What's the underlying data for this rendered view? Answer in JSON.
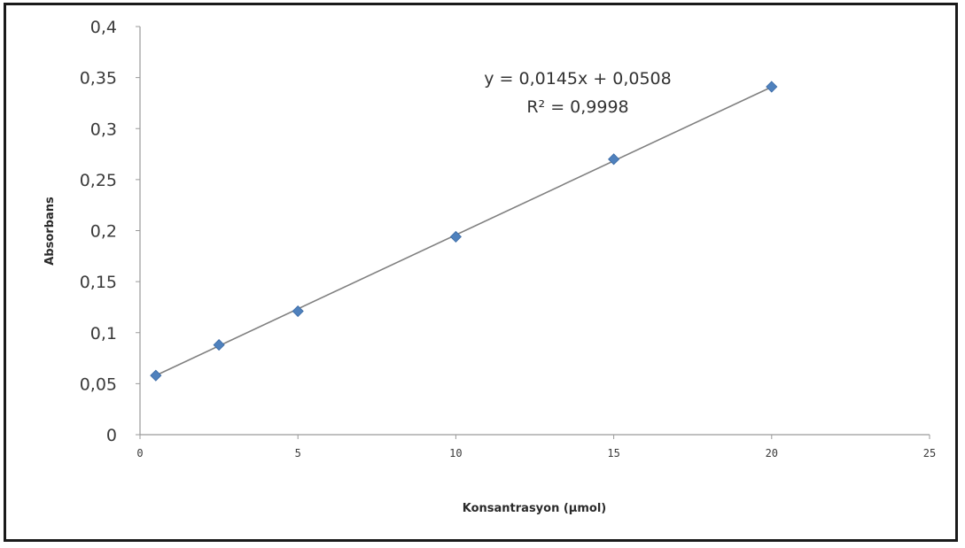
{
  "chart_data": {
    "type": "scatter",
    "title": "",
    "xlabel": "Konsantrasyon (µmol)",
    "ylabel": "Absorbans",
    "xlim": [
      0,
      25
    ],
    "ylim": [
      0,
      0.4
    ],
    "x_ticks": [
      "0",
      "5",
      "10",
      "15",
      "20",
      "25"
    ],
    "y_ticks": [
      "0",
      "0,05",
      "0,1",
      "0,15",
      "0,2",
      "0,25",
      "0,3",
      "0,35",
      "0,4"
    ],
    "grid": false,
    "legend": "none",
    "series": [
      {
        "marker": "diamond",
        "color": "#4f81bd",
        "points": [
          {
            "x": 0.5,
            "y": 0.058
          },
          {
            "x": 2.5,
            "y": 0.088
          },
          {
            "x": 5,
            "y": 0.121
          },
          {
            "x": 10,
            "y": 0.194
          },
          {
            "x": 15,
            "y": 0.27
          },
          {
            "x": 20,
            "y": 0.341
          }
        ]
      }
    ],
    "trendline": {
      "type": "linear",
      "slope": 0.0145,
      "intercept": 0.0508,
      "color": "#808080",
      "equation_text": "y = 0,0145x + 0,0508",
      "r2_text": "R² = 0,9998"
    }
  }
}
